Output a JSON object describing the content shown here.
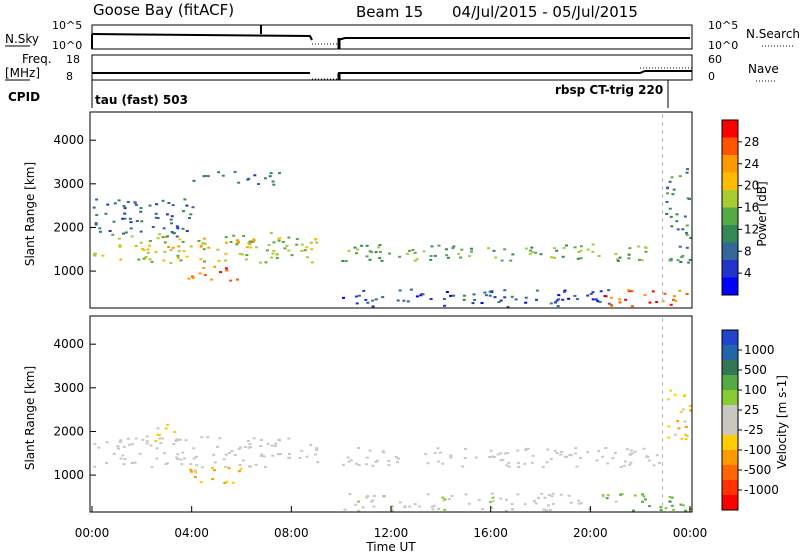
{
  "header": {
    "station": "Goose Bay (fitACF)",
    "beam": "Beam 15",
    "date_range": "04/Jul/2015 - 05/Jul/2015"
  },
  "strip": {
    "nsky_label": "N.Sky",
    "nsky_ticks": [
      "10^5",
      "10^0"
    ],
    "nsearch_label": "N.Search",
    "nsearch_ticks": [
      "10^5",
      "10^0"
    ],
    "freq_label_1": "Freq.",
    "freq_label_2": "[MHz]",
    "freq_ticks": [
      "18",
      "8"
    ],
    "nave_label": "Nave",
    "nave_ticks": [
      "60",
      "0"
    ],
    "cpid_label": "CPID",
    "cpid_left": "tau (fast) 503",
    "cpid_right": "rbsp CT-trig 220"
  },
  "axes": {
    "ylabel": "Slant Range [km]",
    "xlabel": "Time UT",
    "y_ticks": [
      "1000",
      "2000",
      "3000",
      "4000"
    ],
    "x_ticks": [
      "00:00",
      "04:00",
      "08:00",
      "12:00",
      "16:00",
      "20:00",
      "00:00"
    ]
  },
  "colorbars": {
    "power_label": "Power [dB]",
    "power_ticks": [
      "28",
      "24",
      "20",
      "16",
      "12",
      "8",
      "4"
    ],
    "power_colors": [
      "#ff0000",
      "#ff5500",
      "#ff9900",
      "#ffbb00",
      "#aacc33",
      "#55aa44",
      "#338855",
      "#336699",
      "#2233cc",
      "#0000ff"
    ],
    "velocity_label": "Velocity [m s-1]",
    "velocity_ticks": [
      "1000",
      "500",
      "100",
      "25",
      "-25",
      "-100",
      "-500",
      "-1000"
    ],
    "velocity_colors": [
      "#2244cc",
      "#2266aa",
      "#337755",
      "#55aa44",
      "#88cc33",
      "#c8c8c0",
      "#c8c8c0",
      "#ffcc00",
      "#ff9900",
      "#ff6600",
      "#ff3300",
      "#ff0000"
    ]
  },
  "chart_data": [
    {
      "type": "heatmap",
      "title": "Power",
      "xlabel": "Time UT",
      "ylabel": "Slant Range [km]",
      "xlim": [
        0,
        24
      ],
      "ylim": [
        200,
        4600
      ],
      "colorbar_range": [
        0,
        30
      ],
      "blobs": [
        {
          "t0": 0.0,
          "t1": 9.0,
          "r0": 1200,
          "r1": 1900,
          "value": 16
        },
        {
          "t0": 3.0,
          "t1": 6.5,
          "r0": 1550,
          "r1": 1800,
          "value": 20
        },
        {
          "t0": 3.8,
          "t1": 6.0,
          "r0": 800,
          "r1": 1150,
          "value": 26
        },
        {
          "t0": 0.0,
          "t1": 4.0,
          "r0": 1800,
          "r1": 2700,
          "value": 8
        },
        {
          "t0": 4.0,
          "t1": 7.5,
          "r0": 3000,
          "r1": 3300,
          "value": 8
        },
        {
          "t0": 10.0,
          "t1": 23.0,
          "r0": 1250,
          "r1": 1650,
          "value": 14
        },
        {
          "t0": 10.0,
          "t1": 21.0,
          "r0": 200,
          "r1": 600,
          "value": 6
        },
        {
          "t0": 20.5,
          "t1": 24.0,
          "r0": 200,
          "r1": 600,
          "value": 26
        },
        {
          "t0": 23.0,
          "t1": 24.0,
          "r0": 1200,
          "r1": 3400,
          "value": 10
        }
      ]
    },
    {
      "type": "heatmap",
      "title": "Velocity",
      "xlabel": "Time UT",
      "ylabel": "Slant Range [km]",
      "xlim": [
        0,
        24
      ],
      "ylim": [
        200,
        4600
      ],
      "colorbar_range": [
        -1000,
        1000
      ],
      "blobs": [
        {
          "t0": 0.0,
          "t1": 9.0,
          "r0": 1200,
          "r1": 1900,
          "value": 0
        },
        {
          "t0": 3.8,
          "t1": 6.0,
          "r0": 800,
          "r1": 1200,
          "value": -300
        },
        {
          "t0": 2.0,
          "t1": 3.5,
          "r0": 1800,
          "r1": 2200,
          "value": -150
        },
        {
          "t0": 10.0,
          "t1": 23.0,
          "r0": 1200,
          "r1": 1650,
          "value": 0
        },
        {
          "t0": 10.0,
          "t1": 21.0,
          "r0": 200,
          "r1": 600,
          "value": 50
        },
        {
          "t0": 20.5,
          "t1": 24.0,
          "r0": 200,
          "r1": 600,
          "value": 400
        },
        {
          "t0": 23.0,
          "t1": 24.0,
          "r0": 1800,
          "r1": 3000,
          "value": -300
        }
      ]
    }
  ]
}
